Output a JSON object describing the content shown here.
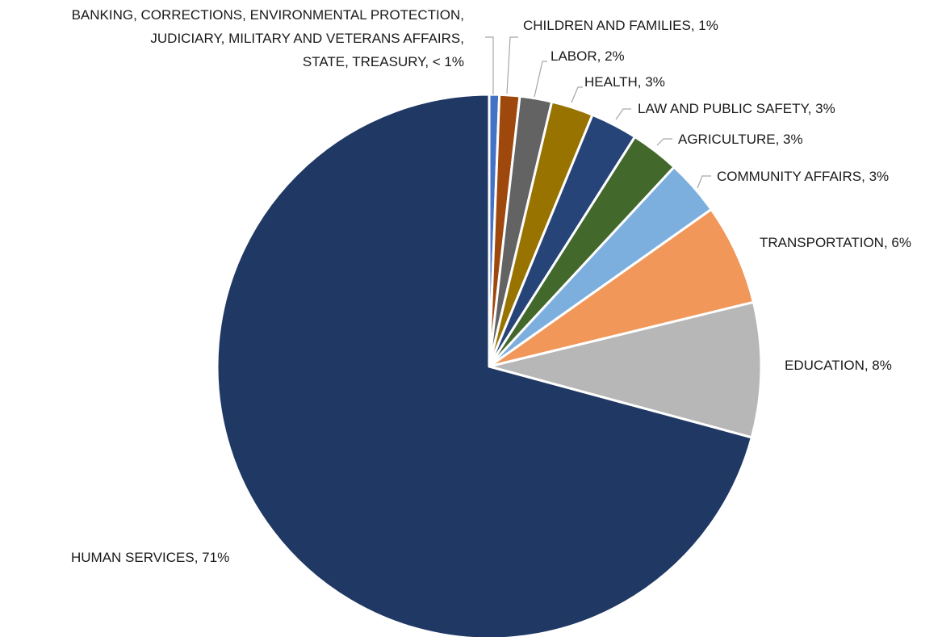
{
  "chart_data": {
    "type": "pie",
    "title": "",
    "slices": [
      {
        "label": "BANKING, CORRECTIONS, ENVIRONMENTAL PROTECTION, JUDICIARY, MILITARY AND VETERANS AFFAIRS, STATE, TREASURY",
        "display": "< 1%",
        "value": 0.6,
        "color": "#4472c4"
      },
      {
        "label": "CHILDREN AND FAMILIES",
        "display": "1%",
        "value": 1.2,
        "color": "#9e480e"
      },
      {
        "label": "LABOR",
        "display": "2%",
        "value": 1.9,
        "color": "#636363"
      },
      {
        "label": "HEALTH",
        "display": "3%",
        "value": 2.5,
        "color": "#997300"
      },
      {
        "label": "LAW AND PUBLIC SAFETY",
        "display": "3%",
        "value": 2.8,
        "color": "#264478"
      },
      {
        "label": "AGRICULTURE",
        "display": "3%",
        "value": 2.9,
        "color": "#43682b"
      },
      {
        "label": "COMMUNITY AFFAIRS",
        "display": "3%",
        "value": 3.3,
        "color": "#7cafdd"
      },
      {
        "label": "TRANSPORTATION",
        "display": "6%",
        "value": 6.0,
        "color": "#f1975a"
      },
      {
        "label": "EDUCATION",
        "display": "8%",
        "value": 8.0,
        "color": "#b7b7b7"
      },
      {
        "label": "HUMAN SERVICES",
        "display": "71%",
        "value": 70.8,
        "color": "#203864"
      }
    ],
    "label_texts": {
      "banking_line1": "BANKING, CORRECTIONS, ENVIRONMENTAL PROTECTION,",
      "banking_line2": "JUDICIARY, MILITARY AND VETERANS AFFAIRS,",
      "banking_line3": "STATE, TREASURY, < 1%",
      "children": "CHILDREN AND FAMILIES, 1%",
      "labor": "LABOR, 2%",
      "health": "HEALTH, 3%",
      "law": "LAW AND PUBLIC SAFETY, 3%",
      "agriculture": "AGRICULTURE, 3%",
      "community": "COMMUNITY AFFAIRS, 3%",
      "transportation": "TRANSPORTATION, 6%",
      "education": "EDUCATION, 8%",
      "human_services": "HUMAN SERVICES, 71%"
    },
    "legend": "none (data labels outside slices)"
  }
}
